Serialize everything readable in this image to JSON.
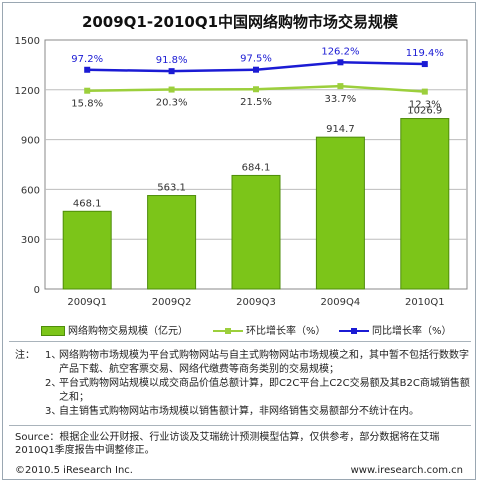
{
  "chart_data": {
    "type": "bar",
    "title": "2009Q1-2010Q1中国网络购物市场交易规模",
    "categories": [
      "2009Q1",
      "2009Q2",
      "2009Q3",
      "2009Q4",
      "2010Q1"
    ],
    "ylim": [
      0,
      1500
    ],
    "yticks": [
      "0",
      "300",
      "600",
      "900",
      "1200",
      "1500"
    ],
    "grid": true,
    "series": [
      {
        "name": "网络购物交易规模（亿元）",
        "kind": "bar",
        "values": [
          468.1,
          563.1,
          684.1,
          914.7,
          1026.9
        ],
        "labels": [
          "468.1",
          "563.1",
          "684.1",
          "914.7",
          "1026.9"
        ],
        "color": "#7cc519"
      },
      {
        "name": "环比增长率（%）",
        "kind": "line",
        "values": [
          15.8,
          20.3,
          21.5,
          33.7,
          12.3
        ],
        "labels": [
          "15.8%",
          "20.3%",
          "21.5%",
          "33.7%",
          "12.3%"
        ],
        "color": "#9ccf3c"
      },
      {
        "name": "同比增长率（%）",
        "kind": "line",
        "values": [
          97.2,
          91.8,
          97.5,
          126.2,
          119.4
        ],
        "labels": [
          "97.2%",
          "91.8%",
          "97.5%",
          "126.2%",
          "119.4%"
        ],
        "color": "#1b1bd4"
      }
    ],
    "legend_position": "bottom"
  },
  "notes": {
    "label": "注：",
    "items": [
      {
        "num": "1、",
        "text": "网络购物市场规模为平台式购物网站与自主式购物网站市场规模之和，其中暂不包括行数数字产品下载、航空客票交易、网络代缴费等商务类别的交易规模；"
      },
      {
        "num": "2、",
        "text": "平台式购物网站规模以成交商品价值总额计算，即C2C平台上C2C交易额及其B2C商城销售额之和；"
      },
      {
        "num": "3、",
        "text": "自主销售式购物网站市场规模以销售额计算，非网络销售交易额部分不统计在内。"
      }
    ]
  },
  "source": "Source：根据企业公开财报、行业访谈及艾瑞统计预测模型估算，仅供参考，部分数据将在艾瑞2010Q1季度报告中调整修正。",
  "footer": {
    "copyright": "©2010.5 iResearch Inc.",
    "website": "www.iresearch.com.cn"
  }
}
